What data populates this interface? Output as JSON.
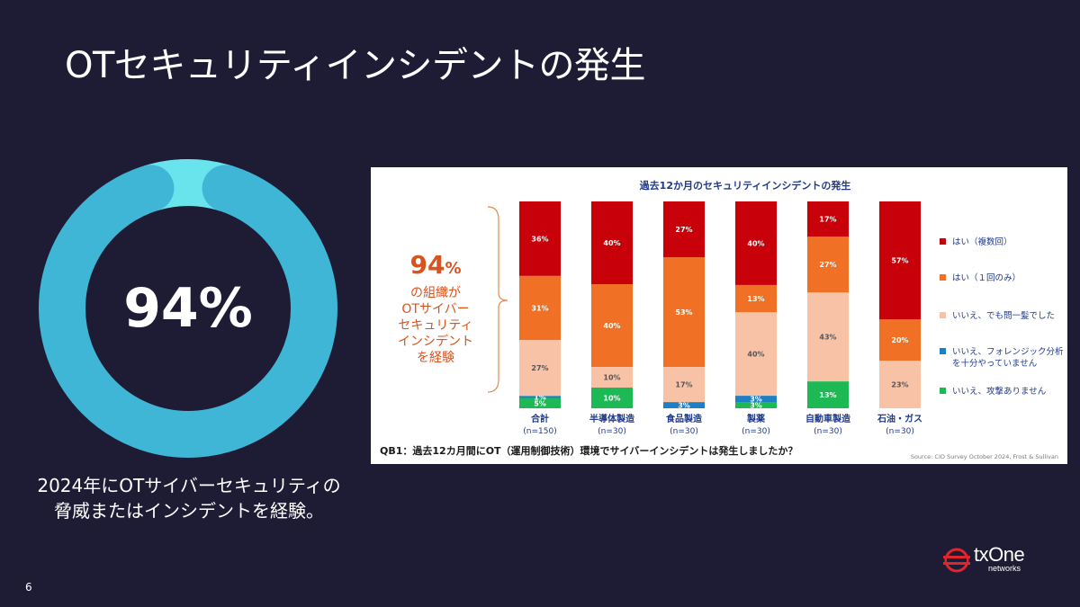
{
  "slide": {
    "title": "OTセキュリティインシデントの発生",
    "page_number": "6"
  },
  "donut": {
    "value_label": "94%",
    "value": 94,
    "colors": {
      "ring": "#3fb6d6",
      "accent": "#6ae4ec"
    }
  },
  "caption": {
    "line1": "2024年にOTサイバーセキュリティの",
    "line2": "脅威またはインシデントを経験。"
  },
  "logo": {
    "text": "txOne",
    "subtext": "networks"
  },
  "chart_data": {
    "type": "bar",
    "stacked": true,
    "title": "過去12か月のセキュリティインシデントの発生",
    "categories": [
      "合計",
      "半導体製造",
      "食品製造",
      "製薬",
      "自動車製造",
      "石油・ガス"
    ],
    "category_n": [
      "(n=150)",
      "(n=30)",
      "(n=30)",
      "(n=30)",
      "(n=30)",
      "(n=30)"
    ],
    "series": [
      {
        "name": "いいえ、攻撃ありません",
        "color": "#1db954",
        "values": [
          5,
          10,
          0,
          3,
          13,
          0
        ],
        "labels": [
          "5%",
          "10%",
          "",
          "3%",
          "13%",
          ""
        ]
      },
      {
        "name": "いいえ、フォレンジック分析|を十分やっていません",
        "color": "#1f7fc4",
        "values": [
          1,
          0,
          3,
          3,
          0,
          0
        ],
        "labels": [
          "1%",
          "",
          "3%",
          "3%",
          "",
          ""
        ]
      },
      {
        "name": "いいえ、でも問一髪でした",
        "color": "#f8c2a6",
        "values": [
          27,
          10,
          17,
          40,
          43,
          23
        ],
        "labels": [
          "27%",
          "10%",
          "17%",
          "40%",
          "43%",
          "23%"
        ]
      },
      {
        "name": "はい（１回のみ）",
        "color": "#f07025",
        "values": [
          31,
          40,
          53,
          13,
          27,
          20
        ],
        "labels": [
          "31%",
          "40%",
          "53%",
          "13%",
          "27%",
          "20%"
        ]
      },
      {
        "name": "はい（複数回）",
        "color": "#c8000a",
        "values": [
          36,
          40,
          27,
          40,
          17,
          57
        ],
        "labels": [
          "36%",
          "40%",
          "27%",
          "40%",
          "17%",
          "57%"
        ]
      }
    ],
    "legend_order": [
      "はい（複数回）",
      "はい（１回のみ）",
      "いいえ、でも問一髪でした",
      "いいえ、フォレンジック分析|を十分やっていません",
      "いいえ、攻撃ありません"
    ],
    "legend_position": "right",
    "ylim": [
      0,
      100
    ],
    "callout": {
      "value": "94",
      "unit": "%",
      "lines": [
        "の組織が",
        "OTサイバー",
        "セキュリティ",
        "インシデント",
        "を経験"
      ],
      "color": "#d9531e"
    },
    "question": "QB1：過去12カ月間にOT（運用制御技術）環境でサイバーインシデントは発生しましたか？",
    "source": "Source: CIO Survey October 2024, Frost & Sullivan"
  }
}
